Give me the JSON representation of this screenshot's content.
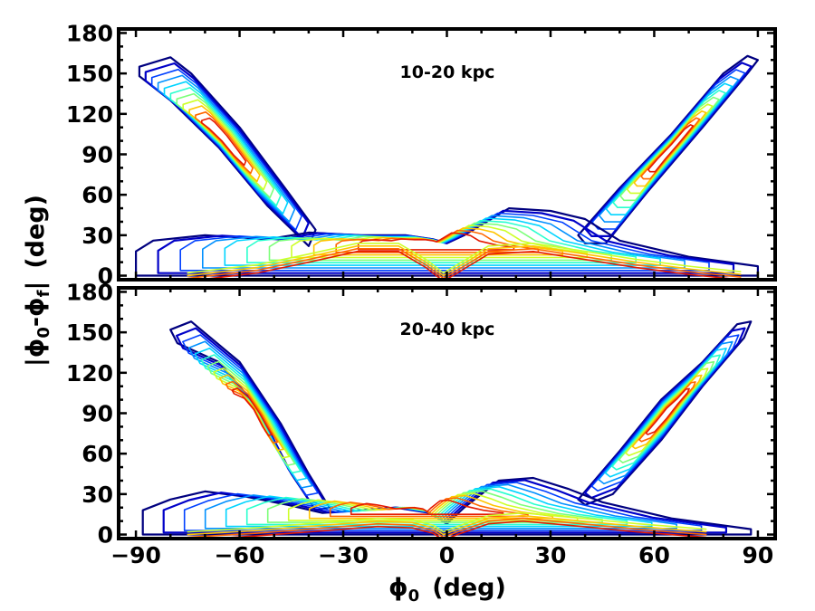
{
  "chart_data": {
    "type": "contour",
    "xlabel": "ϕ",
    "xlabel_sub": "0",
    "xlabel_unit": "(deg)",
    "ylabel": "|ϕ",
    "ylabel_sub1": "0",
    "ylabel_mid": "-ϕ",
    "ylabel_sub2": "f",
    "ylabel_end": "|",
    "ylabel_unit": "(deg)",
    "xlim": [
      -95,
      95
    ],
    "ylim": [
      -3,
      183
    ],
    "xticks": [
      -90,
      -60,
      -30,
      0,
      30,
      60,
      90
    ],
    "xtick_labels": [
      "−90",
      "−60",
      "−30",
      "0",
      "30",
      "60",
      "90"
    ],
    "yticks": [
      0,
      30,
      60,
      90,
      120,
      150,
      180
    ],
    "ytick_labels": [
      "0",
      "30",
      "60",
      "90",
      "120",
      "150",
      "180"
    ],
    "colormap": [
      "#00007f",
      "#0000c8",
      "#0040ff",
      "#0090ff",
      "#00d4ff",
      "#29ffce",
      "#7dff7a",
      "#ceff29",
      "#ffc400",
      "#ff6800",
      "#e41a00"
    ],
    "panels": [
      {
        "label": "10-20 kpc",
        "features": [
          {
            "name": "left-arm",
            "points": [
              [
                -89,
                155
              ],
              [
                -80,
                162
              ],
              [
                -74,
                150
              ],
              [
                -60,
                110
              ],
              [
                -46,
                62
              ],
              [
                -38,
                34
              ],
              [
                -40,
                22
              ],
              [
                -52,
                52
              ],
              [
                -66,
                95
              ],
              [
                -80,
                130
              ],
              [
                -89,
                148
              ]
            ]
          },
          {
            "name": "right-arm",
            "points": [
              [
                38,
                30
              ],
              [
                50,
                65
              ],
              [
                65,
                105
              ],
              [
                80,
                150
              ],
              [
                87,
                163
              ],
              [
                90,
                160
              ],
              [
                87,
                150
              ],
              [
                74,
                110
              ],
              [
                58,
                62
              ],
              [
                46,
                24
              ],
              [
                40,
                24
              ]
            ]
          },
          {
            "name": "central-band",
            "points": [
              [
                -90,
                0
              ],
              [
                -90,
                18
              ],
              [
                -85,
                26
              ],
              [
                -70,
                30
              ],
              [
                -52,
                27
              ],
              [
                -40,
                32
              ],
              [
                -25,
                30
              ],
              [
                -12,
                30
              ],
              [
                -4,
                27
              ],
              [
                0,
                24
              ],
              [
                5,
                30
              ],
              [
                18,
                50
              ],
              [
                30,
                48
              ],
              [
                40,
                42
              ],
              [
                50,
                26
              ],
              [
                70,
                14
              ],
              [
                90,
                7
              ],
              [
                90,
                0
              ]
            ]
          },
          {
            "name": "core-ridge",
            "points": [
              [
                -75,
                2
              ],
              [
                -55,
                8
              ],
              [
                -40,
                16
              ],
              [
                -26,
                24
              ],
              [
                -14,
                24
              ],
              [
                -6,
                12
              ],
              [
                -1,
                2
              ],
              [
                3,
                8
              ],
              [
                12,
                22
              ],
              [
                25,
                24
              ],
              [
                40,
                18
              ],
              [
                55,
                12
              ],
              [
                70,
                7
              ],
              [
                85,
                3
              ]
            ]
          }
        ]
      },
      {
        "label": "20-40 kpc",
        "features": [
          {
            "name": "left-arm",
            "points": [
              [
                -80,
                152
              ],
              [
                -74,
                158
              ],
              [
                -60,
                128
              ],
              [
                -48,
                82
              ],
              [
                -40,
                45
              ],
              [
                -34,
                20
              ],
              [
                -38,
                18
              ],
              [
                -45,
                45
              ],
              [
                -55,
                95
              ],
              [
                -66,
                128
              ],
              [
                -78,
                142
              ]
            ]
          },
          {
            "name": "right-arm",
            "points": [
              [
                38,
                26
              ],
              [
                50,
                62
              ],
              [
                62,
                100
              ],
              [
                74,
                128
              ],
              [
                84,
                156
              ],
              [
                88,
                158
              ],
              [
                86,
                146
              ],
              [
                74,
                110
              ],
              [
                62,
                70
              ],
              [
                48,
                30
              ],
              [
                40,
                22
              ]
            ]
          },
          {
            "name": "central-band",
            "points": [
              [
                -88,
                0
              ],
              [
                -88,
                18
              ],
              [
                -80,
                26
              ],
              [
                -70,
                32
              ],
              [
                -58,
                28
              ],
              [
                -46,
                22
              ],
              [
                -36,
                16
              ],
              [
                -25,
                18
              ],
              [
                -15,
                20
              ],
              [
                -5,
                16
              ],
              [
                0,
                8
              ],
              [
                5,
                20
              ],
              [
                15,
                40
              ],
              [
                25,
                42
              ],
              [
                35,
                34
              ],
              [
                45,
                24
              ],
              [
                65,
                12
              ],
              [
                88,
                4
              ],
              [
                88,
                0
              ]
            ]
          },
          {
            "name": "core-ridge",
            "points": [
              [
                -75,
                2
              ],
              [
                -55,
                5
              ],
              [
                -35,
                9
              ],
              [
                -20,
                12
              ],
              [
                -10,
                11
              ],
              [
                -4,
                7
              ],
              [
                -1,
                2
              ],
              [
                3,
                6
              ],
              [
                12,
                14
              ],
              [
                22,
                16
              ],
              [
                35,
                13
              ],
              [
                55,
                8
              ],
              [
                75,
                4
              ]
            ]
          }
        ]
      }
    ]
  }
}
